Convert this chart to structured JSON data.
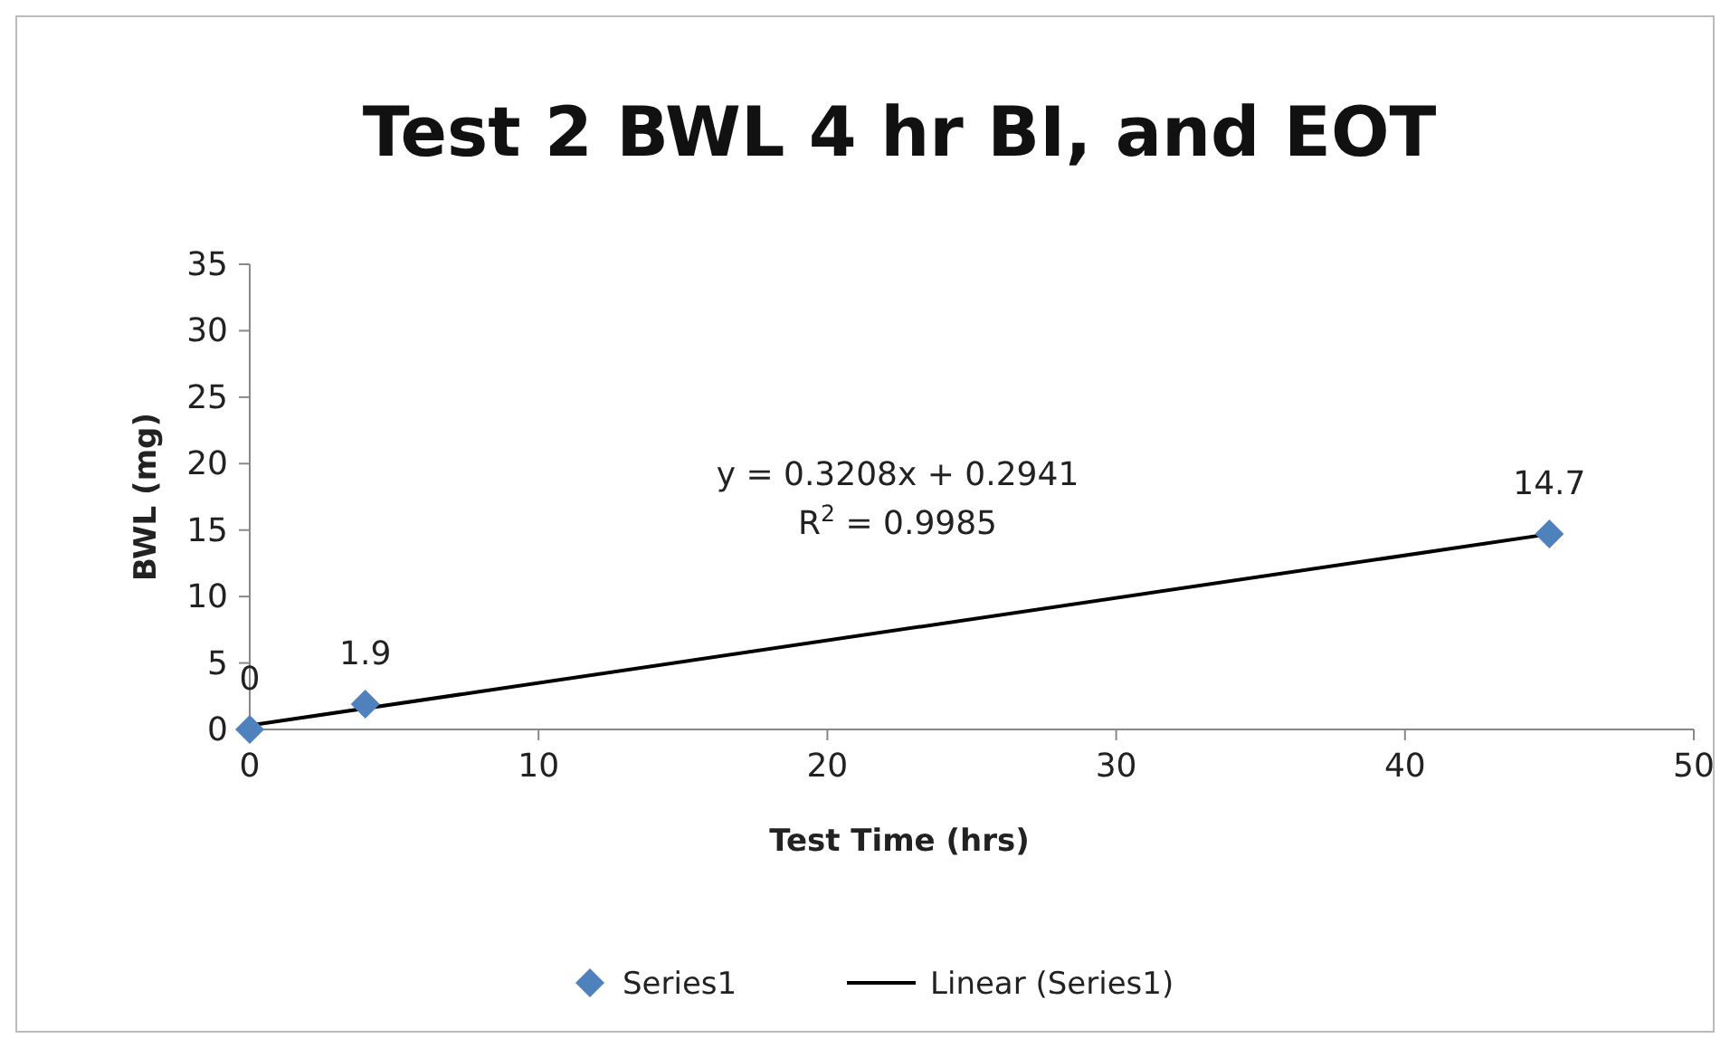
{
  "chart_data": {
    "type": "scatter",
    "title": "Test 2 BWL 4 hr BI, and EOT",
    "xlabel": "Test Time (hrs)",
    "ylabel": "BWL (mg)",
    "x": [
      0,
      4,
      45
    ],
    "series": [
      {
        "name": "Series1",
        "color": "#4f81bd",
        "marker": "diamond",
        "values": [
          0,
          1.9,
          14.7
        ],
        "value_labels": [
          "0",
          "1.9",
          "14.7"
        ]
      },
      {
        "name": "Linear (Series1)",
        "type": "line",
        "color": "#000000",
        "marker": "none",
        "line_style": "solid",
        "x": [
          0,
          45
        ],
        "values": [
          0.3,
          14.7
        ]
      }
    ],
    "annotations": [
      "y = 0.3208x + 0.2941",
      "R$^{2}$ = 0.9985"
    ],
    "xlim": [
      0,
      50
    ],
    "xticks": [
      0,
      10,
      20,
      30,
      40,
      50
    ],
    "ylim": [
      0,
      35
    ],
    "yticks": [
      0,
      5,
      10,
      15,
      20,
      25,
      30,
      35
    ],
    "grid": false,
    "legend": "bottom"
  }
}
